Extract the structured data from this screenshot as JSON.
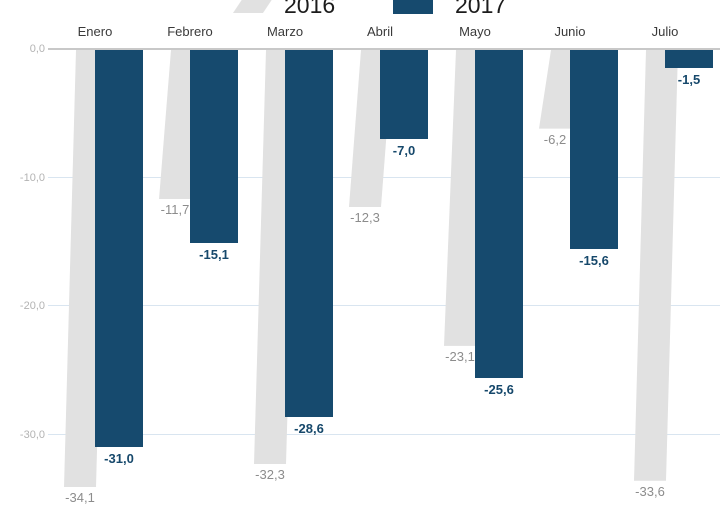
{
  "chart_data": {
    "type": "bar",
    "title": "",
    "orientation": "vertical-negative",
    "categories": [
      "Enero",
      "Febrero",
      "Marzo",
      "Abril",
      "Mayo",
      "Junio",
      "Julio"
    ],
    "series": [
      {
        "name": "2016",
        "color": "#e1e1e1",
        "values": [
          -34.1,
          -11.7,
          -32.3,
          -12.3,
          -23.1,
          -6.2,
          -33.6
        ],
        "labels": [
          "-34,1",
          "-11,7",
          "-32,3",
          "-12,3",
          "-23,1",
          "-6,2",
          "-33,6"
        ]
      },
      {
        "name": "2017",
        "color": "#164a6e",
        "values": [
          -31.0,
          -15.1,
          -28.6,
          -7.0,
          -25.6,
          -15.6,
          -1.5
        ],
        "labels": [
          "-31,0",
          "-15,1",
          "-28,6",
          "-7,0",
          "-25,6",
          "-15,6",
          "-1,5"
        ]
      }
    ],
    "y_axis": {
      "grid": true,
      "range": [
        -36,
        0
      ],
      "ticks": [
        {
          "label": "0,0",
          "value": 0
        },
        {
          "label": "-10,0",
          "value": -10
        },
        {
          "label": "-20,0",
          "value": -20
        },
        {
          "label": "-30,0",
          "value": -30
        }
      ]
    },
    "legend": {
      "position": "top",
      "entries": [
        {
          "label": "2016",
          "color": "#e1e1e1",
          "shape": "skewed-parallelogram"
        },
        {
          "label": "2017",
          "color": "#164a6e",
          "shape": "rectangle"
        }
      ]
    }
  },
  "colors": {
    "bar_2016": "#e1e1e1",
    "bar_2017": "#164a6e",
    "value_label_2016": "#8c8c8c",
    "value_label_2017": "#16486b",
    "month_label": "#3a3a3a",
    "tick_label": "#b3b3b3",
    "gridline": "#d9e5f0",
    "zero_line": "#c8c8c8",
    "legend_text": "#1c1c1c",
    "background": "#ffffff"
  }
}
